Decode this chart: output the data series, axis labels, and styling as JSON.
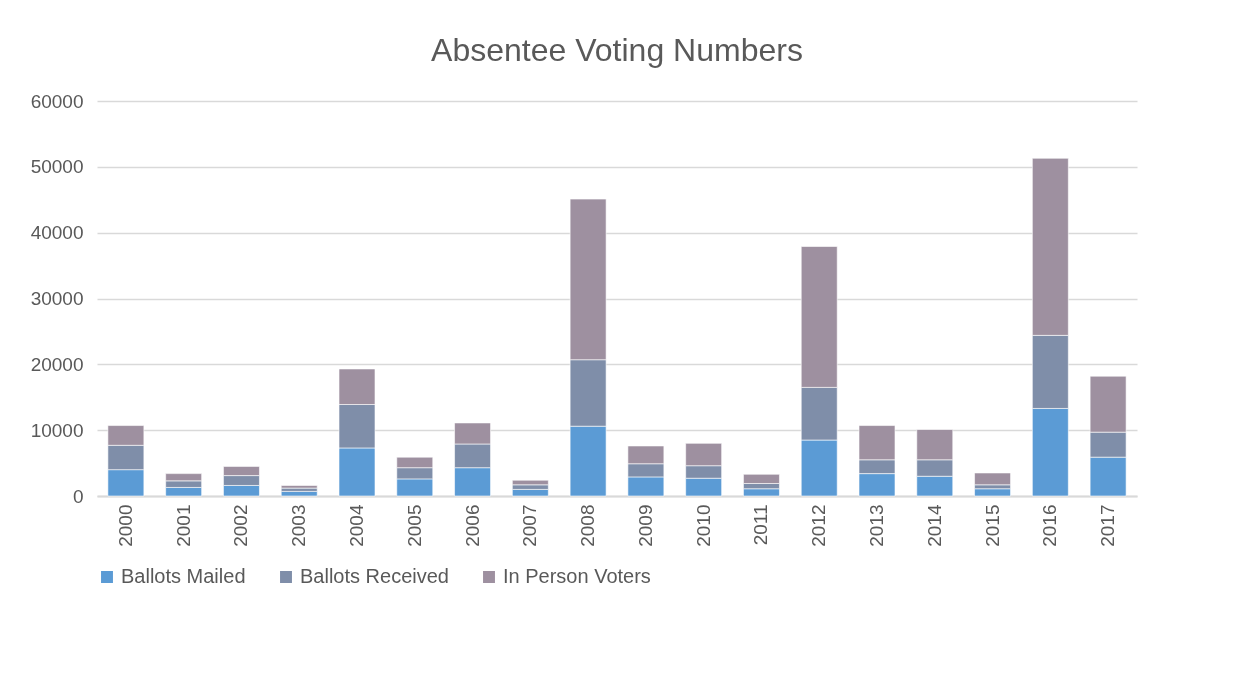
{
  "chart_data": {
    "type": "bar",
    "title": "Absentee Voting Numbers",
    "stacked": true,
    "categories": [
      "2000",
      "2001",
      "2002",
      "2003",
      "2004",
      "2005",
      "2006",
      "2007",
      "2008",
      "2009",
      "2010",
      "2011",
      "2012",
      "2013",
      "2014",
      "2015",
      "2016",
      "2017"
    ],
    "series": [
      {
        "name": "Ballots Mailed",
        "color": "#5b9bd5",
        "values": [
          4000,
          1300,
          1600,
          700,
          7300,
          2600,
          4300,
          1000,
          10600,
          2900,
          2700,
          1100,
          8500,
          3400,
          3000,
          1100,
          13300,
          5900
        ]
      },
      {
        "name": "Ballots Received",
        "color": "#7f8ea9",
        "values": [
          3700,
          1000,
          1500,
          500,
          6600,
          1700,
          3600,
          700,
          10100,
          2000,
          1900,
          800,
          8000,
          2100,
          2500,
          600,
          11100,
          3800
        ]
      },
      {
        "name": "In Person Voters",
        "color": "#9e90a0",
        "values": [
          3000,
          1100,
          1400,
          400,
          5400,
          1600,
          3200,
          700,
          24400,
          2700,
          3400,
          1400,
          21400,
          5200,
          4600,
          1800,
          26900,
          8500
        ]
      }
    ],
    "ylim": [
      0,
      60000
    ],
    "yticks": [
      0,
      10000,
      20000,
      30000,
      40000,
      50000,
      60000
    ],
    "grid": "y",
    "legend": "bottom"
  }
}
